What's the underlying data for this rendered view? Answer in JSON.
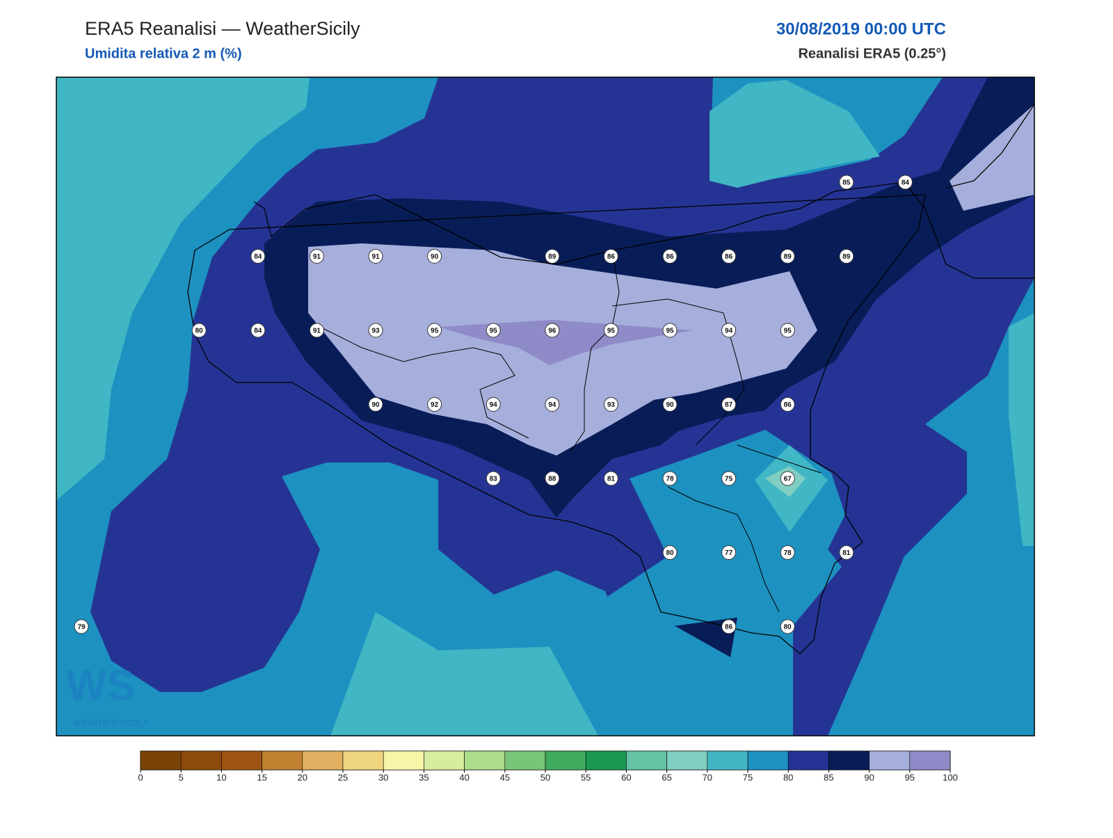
{
  "header": {
    "title": "ERA5 Reanalisi — WeatherSicily",
    "subtitle": "Umidita relativa 2 m (%)",
    "date": "30/08/2019 00:00 UTC",
    "source": "Reanalisi ERA5 (0.25°)"
  },
  "stations": [
    85,
    84,
    84,
    91,
    91,
    90,
    89,
    86,
    86,
    86,
    89,
    89,
    80,
    84,
    91,
    93,
    95,
    95,
    96,
    95,
    95,
    94,
    95,
    90,
    92,
    94,
    94,
    93,
    90,
    87,
    86,
    83,
    88,
    81,
    78,
    75,
    67,
    80,
    77,
    78,
    81,
    79,
    86,
    80
  ],
  "colorbar": {
    "ticks": [
      0,
      5,
      10,
      15,
      20,
      25,
      30,
      35,
      40,
      45,
      50,
      55,
      60,
      65,
      70,
      75,
      80,
      85,
      90,
      95,
      100
    ],
    "colors": [
      "#7a4407",
      "#8c4b0d",
      "#9e5514",
      "#c08130",
      "#e0b060",
      "#f0d580",
      "#f7f6a8",
      "#d8eca0",
      "#addc8c",
      "#78c479",
      "#41ab5d",
      "#1a9850",
      "#66c2a4",
      "#80cdc1",
      "#41b6c4",
      "#1d91c0",
      "#253494",
      "#081d58",
      "#a6aedb",
      "#8e8bc8"
    ]
  },
  "logo": {
    "mark": "WS",
    "text": "WEATHER SICILY"
  }
}
